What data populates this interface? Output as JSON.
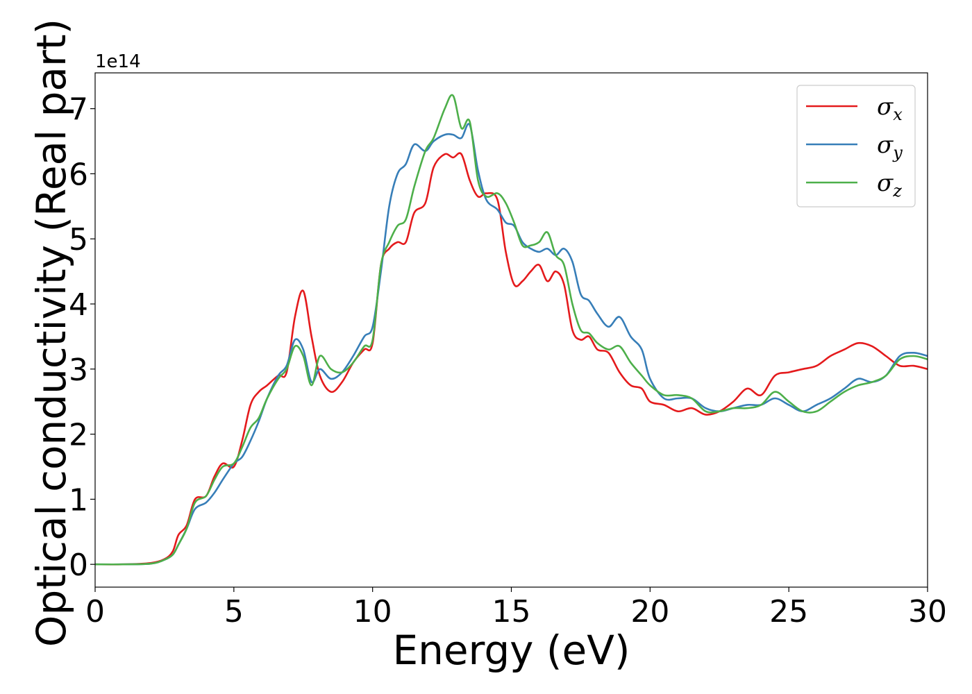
{
  "chart_data": {
    "type": "line",
    "title": "",
    "xlabel": "Energy (eV)",
    "ylabel": "Optical conductivity (Real part)",
    "y_offset_label": "1e14",
    "xlim": [
      0,
      30
    ],
    "ylim": [
      -0.35,
      7.55
    ],
    "xticks": [
      0,
      5,
      10,
      15,
      20,
      25,
      30
    ],
    "xtick_labels": [
      "0",
      "5",
      "10",
      "15",
      "20",
      "25",
      "30"
    ],
    "yticks": [
      0,
      1,
      2,
      3,
      4,
      5,
      6,
      7
    ],
    "ytick_labels": [
      "0",
      "1",
      "2",
      "3",
      "4",
      "5",
      "6",
      "7"
    ],
    "grid": false,
    "legend_position": "top-right",
    "series": [
      {
        "name": "σx",
        "symbol": "σ",
        "subscript": "x",
        "color": "#e41a1c",
        "x": [
          0,
          1,
          2,
          2.5,
          2.8,
          3.0,
          3.3,
          3.6,
          4.0,
          4.3,
          4.6,
          5.0,
          5.3,
          5.6,
          5.9,
          6.2,
          6.6,
          6.9,
          7.2,
          7.5,
          7.8,
          8.1,
          8.5,
          8.9,
          9.3,
          9.7,
          10.0,
          10.3,
          10.6,
          10.9,
          11.2,
          11.5,
          11.9,
          12.2,
          12.6,
          12.9,
          13.2,
          13.5,
          13.8,
          14.1,
          14.5,
          14.8,
          15.1,
          15.4,
          15.7,
          16.0,
          16.3,
          16.6,
          16.9,
          17.2,
          17.5,
          17.8,
          18.1,
          18.5,
          18.9,
          19.3,
          19.7,
          20.0,
          20.5,
          21.0,
          21.5,
          22.0,
          22.5,
          23.0,
          23.5,
          24.0,
          24.5,
          25.0,
          25.5,
          26.0,
          26.5,
          27.0,
          27.5,
          28.0,
          28.5,
          29.0,
          29.5,
          30.0
        ],
        "y": [
          0,
          0,
          0.02,
          0.08,
          0.2,
          0.45,
          0.6,
          1.0,
          1.05,
          1.35,
          1.55,
          1.5,
          1.9,
          2.45,
          2.65,
          2.75,
          2.9,
          2.95,
          3.8,
          4.2,
          3.5,
          2.9,
          2.65,
          2.8,
          3.1,
          3.3,
          3.4,
          4.6,
          4.85,
          4.95,
          4.95,
          5.4,
          5.55,
          6.1,
          6.3,
          6.25,
          6.3,
          5.9,
          5.65,
          5.7,
          5.6,
          4.8,
          4.3,
          4.35,
          4.5,
          4.6,
          4.35,
          4.5,
          4.3,
          3.6,
          3.45,
          3.5,
          3.3,
          3.25,
          2.95,
          2.75,
          2.7,
          2.5,
          2.45,
          2.35,
          2.4,
          2.3,
          2.35,
          2.5,
          2.7,
          2.6,
          2.9,
          2.95,
          3.0,
          3.05,
          3.2,
          3.3,
          3.4,
          3.35,
          3.2,
          3.05,
          3.05,
          3.0
        ]
      },
      {
        "name": "σy",
        "symbol": "σ",
        "subscript": "y",
        "color": "#377eb8",
        "x": [
          0,
          1,
          2,
          2.5,
          2.8,
          3.0,
          3.3,
          3.6,
          4.0,
          4.3,
          4.6,
          5.0,
          5.3,
          5.6,
          5.9,
          6.2,
          6.6,
          6.9,
          7.2,
          7.5,
          7.8,
          8.1,
          8.5,
          8.9,
          9.3,
          9.7,
          10.0,
          10.3,
          10.6,
          10.9,
          11.2,
          11.5,
          11.9,
          12.2,
          12.6,
          12.9,
          13.2,
          13.5,
          13.8,
          14.1,
          14.5,
          14.8,
          15.1,
          15.4,
          15.7,
          16.0,
          16.3,
          16.6,
          16.9,
          17.2,
          17.5,
          17.8,
          18.1,
          18.5,
          18.9,
          19.3,
          19.7,
          20.0,
          20.5,
          21.0,
          21.5,
          22.0,
          22.5,
          23.0,
          23.5,
          24.0,
          24.5,
          25.0,
          25.5,
          26.0,
          26.5,
          27.0,
          27.5,
          28.0,
          28.5,
          29.0,
          29.5,
          30.0
        ],
        "y": [
          0,
          0,
          0.01,
          0.07,
          0.15,
          0.3,
          0.55,
          0.85,
          0.95,
          1.1,
          1.3,
          1.55,
          1.65,
          1.9,
          2.2,
          2.55,
          2.9,
          3.05,
          3.45,
          3.3,
          2.8,
          3.0,
          2.85,
          2.95,
          3.2,
          3.5,
          3.65,
          4.5,
          5.5,
          6.0,
          6.15,
          6.45,
          6.35,
          6.5,
          6.6,
          6.6,
          6.55,
          6.75,
          6.05,
          5.6,
          5.45,
          5.25,
          5.2,
          4.95,
          4.85,
          4.8,
          4.85,
          4.75,
          4.85,
          4.65,
          4.15,
          4.05,
          3.85,
          3.65,
          3.8,
          3.5,
          3.3,
          2.85,
          2.55,
          2.55,
          2.55,
          2.4,
          2.35,
          2.4,
          2.45,
          2.45,
          2.55,
          2.45,
          2.35,
          2.45,
          2.55,
          2.7,
          2.85,
          2.8,
          2.9,
          3.2,
          3.25,
          3.2
        ]
      },
      {
        "name": "σz",
        "symbol": "σ",
        "subscript": "z",
        "color": "#4daf4a",
        "x": [
          0,
          1,
          2,
          2.5,
          2.8,
          3.0,
          3.3,
          3.6,
          4.0,
          4.3,
          4.6,
          5.0,
          5.3,
          5.6,
          5.9,
          6.2,
          6.6,
          6.9,
          7.2,
          7.5,
          7.8,
          8.1,
          8.5,
          8.9,
          9.3,
          9.7,
          10.0,
          10.3,
          10.6,
          10.9,
          11.2,
          11.5,
          11.9,
          12.2,
          12.6,
          12.9,
          13.2,
          13.5,
          13.8,
          14.1,
          14.5,
          14.8,
          15.1,
          15.4,
          15.7,
          16.0,
          16.3,
          16.6,
          16.9,
          17.2,
          17.5,
          17.8,
          18.1,
          18.5,
          18.9,
          19.3,
          19.7,
          20.0,
          20.5,
          21.0,
          21.5,
          22.0,
          22.5,
          23.0,
          23.5,
          24.0,
          24.5,
          25.0,
          25.5,
          26.0,
          26.5,
          27.0,
          27.5,
          28.0,
          28.5,
          29.0,
          29.5,
          30.0
        ],
        "y": [
          0,
          0,
          0.01,
          0.07,
          0.15,
          0.3,
          0.55,
          0.95,
          1.05,
          1.3,
          1.5,
          1.55,
          1.8,
          2.1,
          2.25,
          2.55,
          2.85,
          3.0,
          3.35,
          3.2,
          2.75,
          3.2,
          3.0,
          2.95,
          3.1,
          3.35,
          3.45,
          4.6,
          4.95,
          5.2,
          5.3,
          5.8,
          6.35,
          6.55,
          7.0,
          7.2,
          6.7,
          6.8,
          5.9,
          5.65,
          5.7,
          5.55,
          5.25,
          4.9,
          4.9,
          4.95,
          5.1,
          4.75,
          4.6,
          4.0,
          3.6,
          3.55,
          3.4,
          3.3,
          3.35,
          3.1,
          2.9,
          2.75,
          2.6,
          2.6,
          2.55,
          2.35,
          2.35,
          2.4,
          2.4,
          2.45,
          2.65,
          2.5,
          2.35,
          2.35,
          2.5,
          2.65,
          2.75,
          2.8,
          2.9,
          3.15,
          3.2,
          3.15
        ]
      }
    ]
  }
}
